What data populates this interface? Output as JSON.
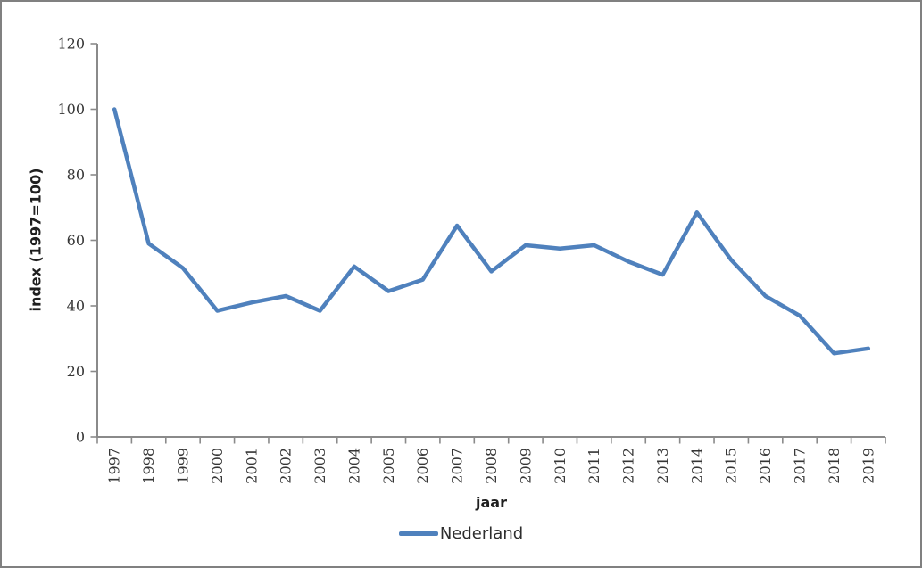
{
  "chart_data": {
    "type": "line",
    "title": "",
    "xlabel": "jaar",
    "ylabel": "index (1997=100)",
    "categories": [
      "1997",
      "1998",
      "1999",
      "2000",
      "2001",
      "2002",
      "2003",
      "2004",
      "2005",
      "2006",
      "2007",
      "2008",
      "2009",
      "2010",
      "2011",
      "2012",
      "2013",
      "2014",
      "2015",
      "2016",
      "2017",
      "2018",
      "2019"
    ],
    "series": [
      {
        "name": "Nederland",
        "color": "#4F81BD",
        "values": [
          100,
          59,
          51.5,
          38.5,
          41,
          43,
          38.5,
          52,
          44.5,
          48,
          64.5,
          50.5,
          58.5,
          57.5,
          58.5,
          53.5,
          49.5,
          68.5,
          54,
          43,
          37,
          25.5,
          27
        ]
      }
    ],
    "ylim": [
      0,
      120
    ],
    "yticks": [
      0,
      20,
      40,
      60,
      80,
      100,
      120
    ],
    "grid": false,
    "legend_position": "bottom",
    "axis_color": "#8A8A8A"
  }
}
